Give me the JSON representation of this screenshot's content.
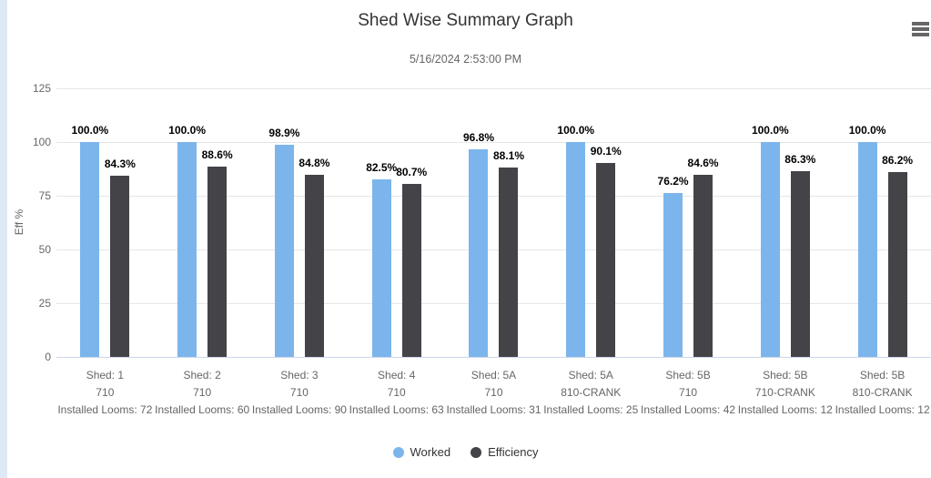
{
  "chart_data": {
    "type": "bar",
    "title": "Shed Wise Summary Graph",
    "subtitle": "5/16/2024 2:53:00 PM",
    "ylabel": "Eff %",
    "ylim": [
      0,
      125
    ],
    "yticks": [
      0,
      25,
      50,
      75,
      100,
      125
    ],
    "grid": true,
    "legend_position": "bottom",
    "categories": [
      [
        "Shed: 1",
        "710",
        "Installed Looms: 72"
      ],
      [
        "Shed: 2",
        "710",
        "Installed Looms: 60"
      ],
      [
        "Shed: 3",
        "710",
        "Installed Looms: 90"
      ],
      [
        "Shed: 4",
        "710",
        "Installed Looms: 63"
      ],
      [
        "Shed: 5A",
        "710",
        "Installed Looms: 31"
      ],
      [
        "Shed: 5A",
        "810-CRANK",
        "Installed Looms: 25"
      ],
      [
        "Shed: 5B",
        "710",
        "Installed Looms: 42"
      ],
      [
        "Shed: 5B",
        "710-CRANK",
        "Installed Looms: 12"
      ],
      [
        "Shed: 5B",
        "810-CRANK",
        "Installed Looms: 12"
      ]
    ],
    "series": [
      {
        "name": "Worked",
        "color": "#7cb5ec",
        "values": [
          100.0,
          100.0,
          98.9,
          82.5,
          96.8,
          100.0,
          76.2,
          100.0,
          100.0
        ],
        "labels": [
          "100.0%",
          "100.0%",
          "98.9%",
          "82.5%",
          "96.8%",
          "100.0%",
          "76.2%",
          "100.0%",
          "100.0%"
        ]
      },
      {
        "name": "Efficiency",
        "color": "#434348",
        "values": [
          84.3,
          88.6,
          84.8,
          80.7,
          88.1,
          90.1,
          84.6,
          86.3,
          86.2
        ],
        "labels": [
          "84.3%",
          "88.6%",
          "84.8%",
          "80.7%",
          "88.1%",
          "90.1%",
          "84.6%",
          "86.3%",
          "86.2%"
        ]
      }
    ],
    "menu_icon": "hamburger-menu-icon"
  }
}
